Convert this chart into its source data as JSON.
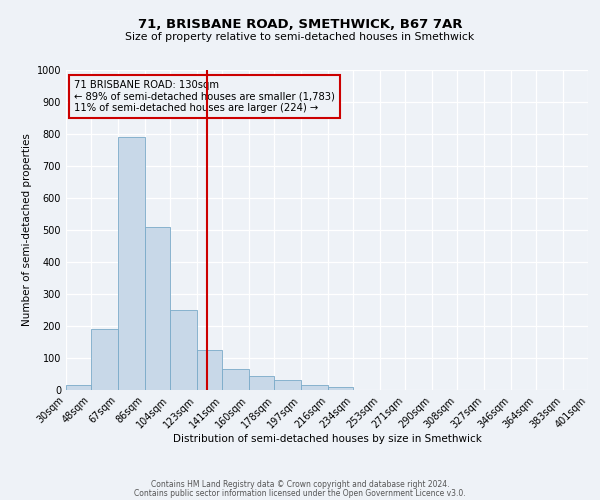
{
  "title": "71, BRISBANE ROAD, SMETHWICK, B67 7AR",
  "subtitle": "Size of property relative to semi-detached houses in Smethwick",
  "xlabel": "Distribution of semi-detached houses by size in Smethwick",
  "ylabel": "Number of semi-detached properties",
  "bin_labels": [
    "30sqm",
    "48sqm",
    "67sqm",
    "86sqm",
    "104sqm",
    "123sqm",
    "141sqm",
    "160sqm",
    "178sqm",
    "197sqm",
    "216sqm",
    "234sqm",
    "253sqm",
    "271sqm",
    "290sqm",
    "308sqm",
    "327sqm",
    "346sqm",
    "364sqm",
    "383sqm",
    "401sqm"
  ],
  "bin_edges": [
    30,
    48,
    67,
    86,
    104,
    123,
    141,
    160,
    178,
    197,
    216,
    234,
    253,
    271,
    290,
    308,
    327,
    346,
    364,
    383,
    401
  ],
  "bar_heights": [
    15,
    190,
    790,
    510,
    250,
    125,
    65,
    45,
    30,
    15,
    10,
    0,
    0,
    0,
    0,
    0,
    0,
    0,
    0,
    0
  ],
  "bar_color": "#c8d8e8",
  "bar_edgecolor": "#7aaac8",
  "property_size": 130,
  "vline_color": "#cc0000",
  "ann_line1": "71 BRISBANE ROAD: 130sqm",
  "ann_line2": "← 89% of semi-detached houses are smaller (1,783)",
  "ann_line3": "11% of semi-detached houses are larger (224) →",
  "box_edgecolor": "#cc0000",
  "ylim": [
    0,
    1000
  ],
  "footer1": "Contains HM Land Registry data © Crown copyright and database right 2024.",
  "footer2": "Contains public sector information licensed under the Open Government Licence v3.0.",
  "background_color": "#eef2f7",
  "grid_color": "#ffffff"
}
